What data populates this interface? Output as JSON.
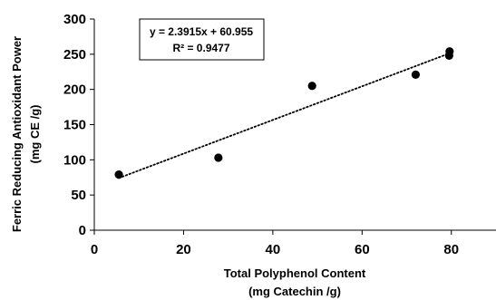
{
  "chart_data": {
    "type": "scatter",
    "xlabel": [
      "Total Polyphenol Content",
      "(mg Catechin /g)"
    ],
    "ylabel": [
      "Ferric Reducing Antioxidant Power",
      "(mg CE /g)"
    ],
    "xlim": [
      0,
      90
    ],
    "ylim": [
      0,
      300
    ],
    "xticks": [
      0,
      20,
      40,
      60,
      80
    ],
    "yticks": [
      0,
      50,
      100,
      150,
      200,
      250,
      300
    ],
    "points": [
      {
        "x": 5.5,
        "y": 79
      },
      {
        "x": 27.8,
        "y": 103
      },
      {
        "x": 48.8,
        "y": 205
      },
      {
        "x": 72.0,
        "y": 221
      },
      {
        "x": 79.5,
        "y": 248
      },
      {
        "x": 79.6,
        "y": 254
      }
    ],
    "trendline": {
      "type": "linear",
      "slope": 2.3915,
      "intercept": 60.955,
      "x_range": [
        5.5,
        79.6
      ],
      "style": "dotted"
    },
    "annotation": {
      "equation": "y = 2.3915x + 60.955",
      "r2": "R² = 0.9477"
    },
    "grid": false,
    "legend": "none"
  }
}
